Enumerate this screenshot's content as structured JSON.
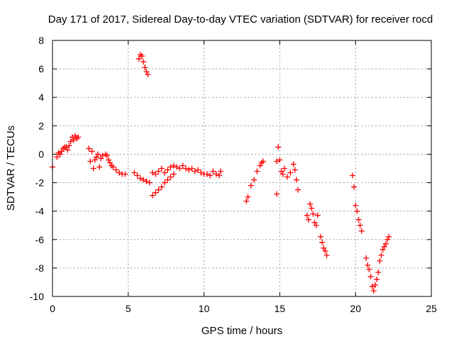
{
  "chart_data": {
    "type": "scatter",
    "title": "Day 171 of 2017, Sidereal Day-to-day VTEC variation (SDTVAR) for receiver rocd",
    "xlabel": "GPS time / hours",
    "ylabel": "SDTVAR / TECUs",
    "xlim": [
      0,
      25
    ],
    "ylim": [
      -10,
      8
    ],
    "xticks": [
      0,
      5,
      10,
      15,
      20,
      25
    ],
    "yticks": [
      -10,
      -8,
      -6,
      -4,
      -2,
      0,
      2,
      4,
      6,
      8
    ],
    "grid": true,
    "marker": "+",
    "series": [
      {
        "name": "SDTVAR",
        "color": "#ff0000",
        "x": [
          0.0,
          0.3,
          0.4,
          0.5,
          0.6,
          0.7,
          0.8,
          0.9,
          1.0,
          1.1,
          1.2,
          1.3,
          1.4,
          1.5,
          1.6,
          1.7,
          2.4,
          2.5,
          2.6,
          2.7,
          2.8,
          2.9,
          3.0,
          3.1,
          3.2,
          3.3,
          3.5,
          3.6,
          3.7,
          3.8,
          3.9,
          4.0,
          4.2,
          4.4,
          4.6,
          4.8,
          5.4,
          5.6,
          5.8,
          6.0,
          6.2,
          6.4,
          6.6,
          6.8,
          7.0,
          7.2,
          7.4,
          7.6,
          7.8,
          8.0,
          8.2,
          8.4,
          8.6,
          8.8,
          9.0,
          9.2,
          9.4,
          9.6,
          9.8,
          10.0,
          10.2,
          10.4,
          10.6,
          10.8,
          11.0,
          11.1,
          6.6,
          6.8,
          7.0,
          7.2,
          7.4,
          7.6,
          7.8,
          8.0,
          5.7,
          5.8,
          5.9,
          6.0,
          6.1,
          6.2,
          6.3,
          12.8,
          12.9,
          13.1,
          13.3,
          13.5,
          13.7,
          13.8,
          13.9,
          14.8,
          14.8,
          14.9,
          15.0,
          15.1,
          15.2,
          15.3,
          15.5,
          15.7,
          15.9,
          16.0,
          16.1,
          16.2,
          16.8,
          16.9,
          17.0,
          17.1,
          17.2,
          17.3,
          17.4,
          17.5,
          17.7,
          17.8,
          17.9,
          18.0,
          18.1,
          19.8,
          19.9,
          20.0,
          20.1,
          20.2,
          20.3,
          20.4,
          20.7,
          20.8,
          20.9,
          21.0,
          21.1,
          21.2,
          21.3,
          21.4,
          21.5,
          21.6,
          21.7,
          21.8,
          21.9,
          22.0,
          22.1,
          22.2
        ],
        "y": [
          -0.9,
          -0.2,
          0.1,
          0.0,
          0.2,
          0.4,
          0.5,
          0.5,
          0.3,
          0.6,
          0.9,
          1.2,
          1.0,
          1.3,
          1.1,
          1.2,
          0.4,
          -0.5,
          0.2,
          -1.0,
          -0.4,
          -0.2,
          0.0,
          -0.9,
          -0.3,
          -0.1,
          0.0,
          -0.1,
          -0.4,
          -0.6,
          -0.8,
          -0.9,
          -1.1,
          -1.3,
          -1.4,
          -1.4,
          -1.3,
          -1.5,
          -1.7,
          -1.8,
          -1.9,
          -2.0,
          -1.3,
          -1.4,
          -1.2,
          -1.0,
          -1.3,
          -1.1,
          -0.9,
          -0.8,
          -0.9,
          -1.0,
          -0.8,
          -1.0,
          -1.1,
          -1.0,
          -1.2,
          -1.1,
          -1.3,
          -1.4,
          -1.4,
          -1.5,
          -1.2,
          -1.4,
          -1.5,
          -1.2,
          -2.9,
          -2.7,
          -2.5,
          -2.3,
          -2.0,
          -1.8,
          -1.6,
          -1.4,
          6.7,
          7.0,
          6.9,
          6.5,
          6.1,
          5.8,
          5.6,
          -3.3,
          -3.0,
          -2.2,
          -1.8,
          -1.2,
          -0.8,
          -0.6,
          -0.5,
          -2.8,
          -0.5,
          0.5,
          -0.4,
          -1.2,
          -1.4,
          -1.0,
          -1.6,
          -1.3,
          -0.7,
          -1.1,
          -1.8,
          -2.5,
          -4.3,
          -4.6,
          -3.5,
          -3.8,
          -4.2,
          -4.8,
          -5.0,
          -4.3,
          -5.8,
          -6.2,
          -6.6,
          -6.8,
          -7.1,
          -1.5,
          -2.3,
          -3.6,
          -4.0,
          -4.6,
          -5.0,
          -5.4,
          -7.3,
          -7.8,
          -8.1,
          -8.6,
          -9.3,
          -9.6,
          -9.2,
          -8.8,
          -8.3,
          -7.5,
          -7.1,
          -6.7,
          -6.5,
          -6.3,
          -6.0,
          -5.8
        ]
      }
    ]
  }
}
